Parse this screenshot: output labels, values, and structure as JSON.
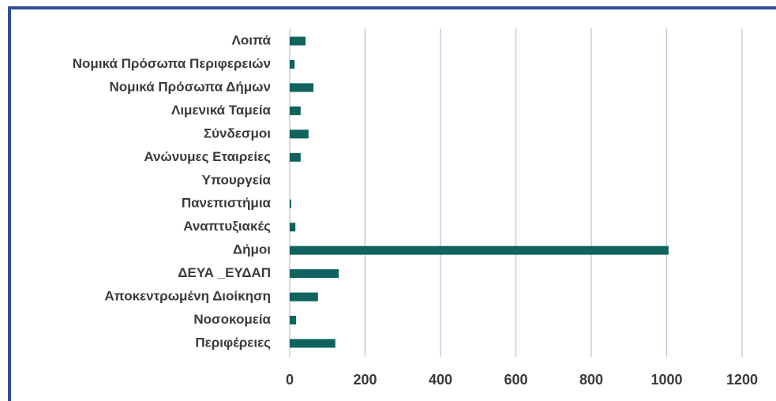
{
  "chart_data": {
    "type": "bar",
    "orientation": "horizontal",
    "categories": [
      "Λοιπά ",
      "Νομικά Πρόσωπα Περιφερειών",
      "Νομικά Πρόσωπα Δήμων ",
      "Λιμενικά Ταμεία",
      "Σύνδεσμοι",
      "Ανώνυμες Εταιρείες",
      "Υπουργεία",
      "Πανεπιστήμια",
      "Αναπτυξιακές",
      "Δήμοι",
      "ΔΕΥΑ _ΕΥΔΑΠ",
      "Αποκεντρωμένη Διοίκηση ",
      "Νοσοκομεία",
      "Περιφέρειες "
    ],
    "values": [
      42,
      13,
      63,
      29,
      50,
      29,
      0,
      4,
      15,
      1005,
      130,
      75,
      17,
      121
    ],
    "color": "#10635e",
    "xlim": [
      0,
      1200
    ],
    "xticks": [
      0,
      200,
      400,
      600,
      800,
      1000,
      1200
    ],
    "grid": true
  }
}
